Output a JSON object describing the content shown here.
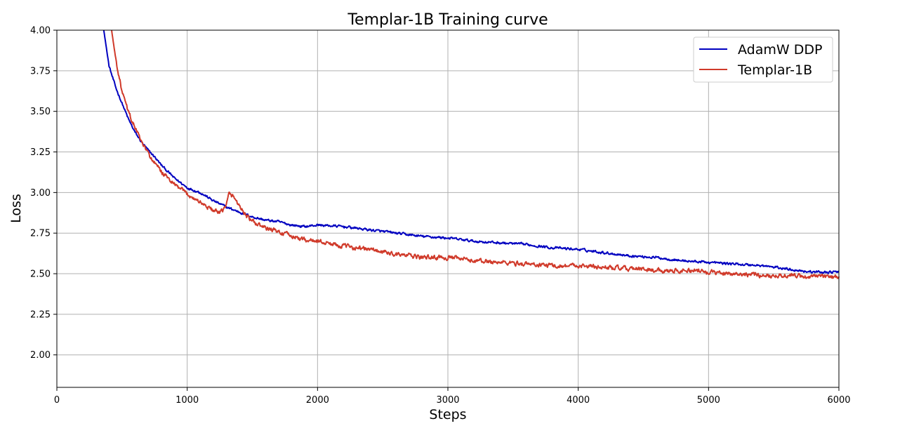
{
  "chart_data": {
    "type": "line",
    "title": "Templar-1B Training curve",
    "xlabel": "Steps",
    "ylabel": "Loss",
    "xlim": [
      0,
      6000
    ],
    "ylim": [
      1.8,
      4.0
    ],
    "xticks": [
      0,
      1000,
      2000,
      3000,
      4000,
      5000,
      6000
    ],
    "xtick_labels": [
      "0",
      "1000",
      "2000",
      "3000",
      "4000",
      "5000",
      "6000"
    ],
    "yticks": [
      2.0,
      2.25,
      2.5,
      2.75,
      3.0,
      3.25,
      3.5,
      3.75,
      4.0
    ],
    "ytick_labels": [
      "2.00",
      "2.25",
      "2.50",
      "2.75",
      "3.00",
      "3.25",
      "3.50",
      "3.75",
      "4.00"
    ],
    "grid": true,
    "legend_position": "top-right",
    "series": [
      {
        "name": "AdamW DDP",
        "color": "#0000c0",
        "x": [
          360,
          400,
          450,
          500,
          550,
          600,
          650,
          700,
          750,
          800,
          900,
          1000,
          1100,
          1200,
          1300,
          1400,
          1500,
          1600,
          1700,
          1800,
          1900,
          2000,
          2200,
          2400,
          2600,
          2800,
          3000,
          3200,
          3400,
          3600,
          3800,
          4000,
          4200,
          4400,
          4600,
          4800,
          5000,
          5200,
          5400,
          5600,
          5800,
          6000
        ],
        "y": [
          4.0,
          3.78,
          3.65,
          3.55,
          3.45,
          3.37,
          3.31,
          3.26,
          3.22,
          3.17,
          3.09,
          3.03,
          3.0,
          2.95,
          2.91,
          2.88,
          2.85,
          2.83,
          2.82,
          2.8,
          2.79,
          2.8,
          2.79,
          2.77,
          2.75,
          2.73,
          2.72,
          2.7,
          2.69,
          2.68,
          2.66,
          2.65,
          2.63,
          2.61,
          2.6,
          2.58,
          2.57,
          2.56,
          2.55,
          2.53,
          2.51,
          2.51
        ]
      },
      {
        "name": "Templar-1B",
        "color": "#d03a2a",
        "x": [
          420,
          450,
          500,
          550,
          600,
          650,
          700,
          750,
          800,
          900,
          1000,
          1100,
          1200,
          1250,
          1300,
          1320,
          1350,
          1400,
          1450,
          1500,
          1600,
          1700,
          1800,
          1900,
          2000,
          2200,
          2400,
          2600,
          2800,
          3000,
          3200,
          3400,
          3600,
          3800,
          4000,
          4200,
          4400,
          4600,
          4800,
          5000,
          5200,
          5400,
          5600,
          5800,
          6000
        ],
        "y": [
          4.0,
          3.83,
          3.62,
          3.49,
          3.4,
          3.31,
          3.24,
          3.18,
          3.13,
          3.05,
          2.99,
          2.94,
          2.89,
          2.87,
          2.92,
          2.99,
          2.98,
          2.92,
          2.86,
          2.82,
          2.78,
          2.76,
          2.73,
          2.71,
          2.7,
          2.67,
          2.65,
          2.62,
          2.6,
          2.6,
          2.58,
          2.57,
          2.56,
          2.55,
          2.55,
          2.54,
          2.53,
          2.52,
          2.52,
          2.51,
          2.5,
          2.49,
          2.49,
          2.48,
          2.48
        ]
      }
    ]
  }
}
